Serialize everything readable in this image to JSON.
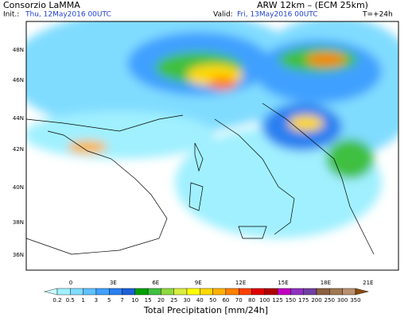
{
  "header": {
    "left_title": "Consorzio LaMMA",
    "right_title": "ARW 12km – (ECM 25km)",
    "init_label": "Init.:",
    "init_date": "Thu, 12May2016 00UTC",
    "valid_label": "Valid:",
    "valid_date": "Fri, 13May2016 00UTC",
    "lead": "T=+24h"
  },
  "map": {
    "lat_labels": [
      "48N",
      "46N",
      "44N",
      "42N",
      "40N",
      "38N",
      "36N"
    ],
    "lon_labels": [
      "0",
      "3E",
      "6E",
      "9E",
      "12E",
      "15E",
      "18E",
      "21E"
    ]
  },
  "colorbar": {
    "labels": [
      0.2,
      0.5,
      1,
      3,
      5,
      7,
      10,
      15,
      20,
      25,
      30,
      40,
      50,
      60,
      70,
      80,
      100,
      125,
      150,
      175,
      200,
      250,
      300,
      350
    ],
    "colors": [
      "#c8ffff",
      "#a0f0ff",
      "#80dcff",
      "#5fc0ff",
      "#40a0ff",
      "#2a80f0",
      "#1c60d8",
      "#00a000",
      "#40c040",
      "#90d840",
      "#d8ec40",
      "#ffff00",
      "#ffd800",
      "#ffb000",
      "#ff8000",
      "#ff4000",
      "#e00000",
      "#b00000",
      "#c000c0",
      "#9030c0",
      "#7040a0",
      "#8c6040",
      "#a07850",
      "#b89070",
      "#8a4a10"
    ],
    "title": "Total Precipitation [mm/24h]"
  }
}
